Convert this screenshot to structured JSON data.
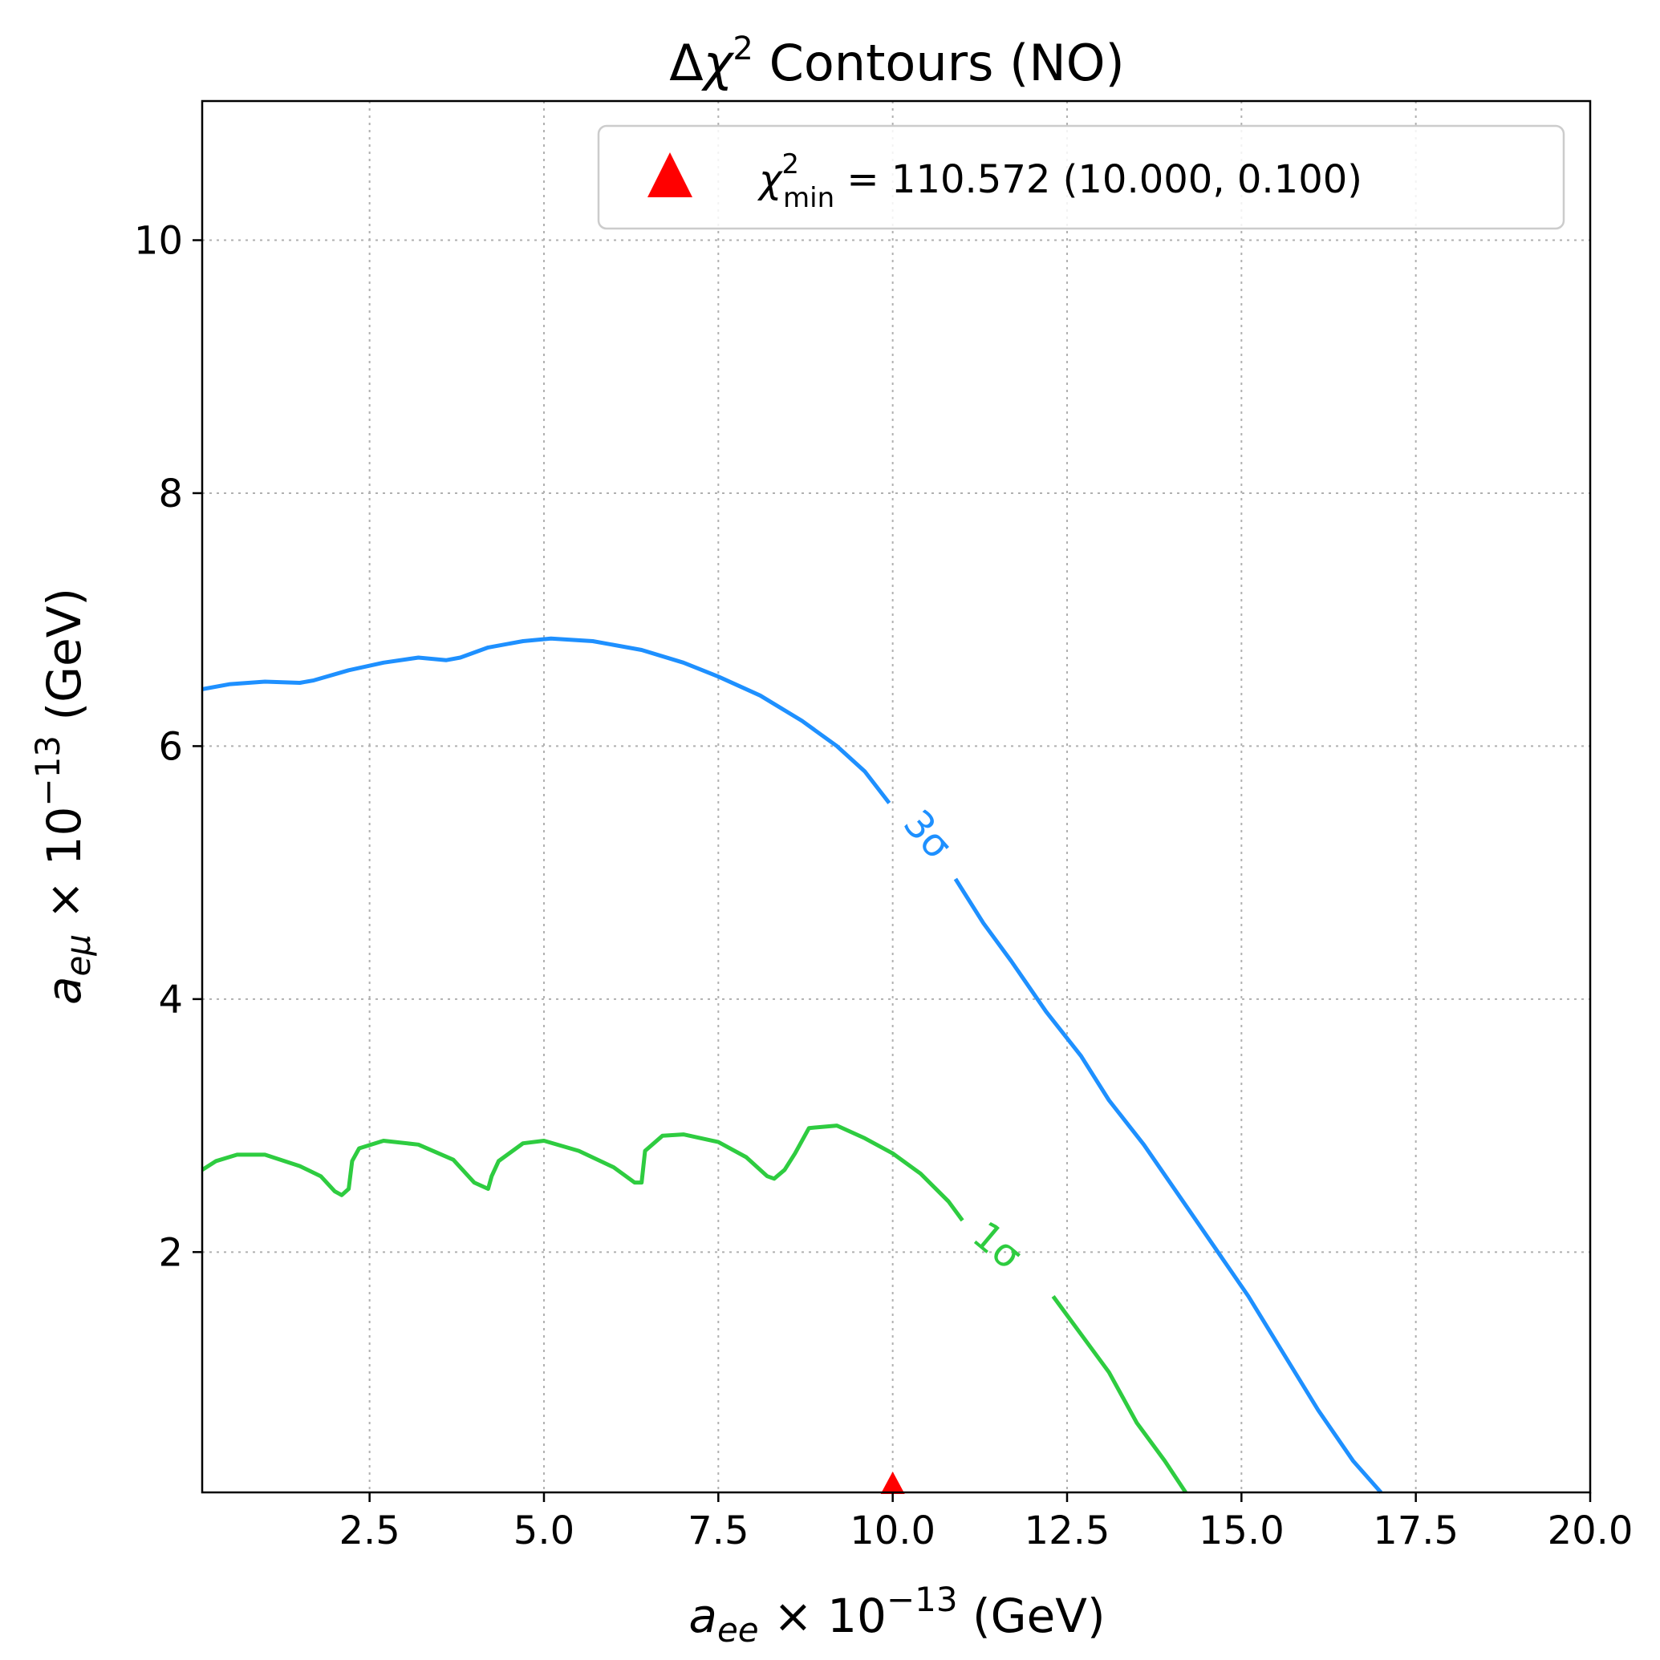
{
  "chart_data": {
    "type": "line",
    "title": {
      "delta": "Δ",
      "chi": "χ",
      "sup": "2",
      "rest": " Contours (NO)"
    },
    "xlabel": {
      "var": "a",
      "sub": "ee",
      "times": " × 10",
      "exp": "−13",
      "unit": " (GeV)"
    },
    "ylabel": {
      "var": "a",
      "sub": "eμ",
      "times": " × 10",
      "exp": "−13",
      "unit": " (GeV)"
    },
    "xlim": [
      0.1,
      20.0
    ],
    "ylim": [
      0.1,
      11.1
    ],
    "grid": true,
    "xticks": [
      2.5,
      5.0,
      7.5,
      10.0,
      12.5,
      15.0,
      17.5,
      20.0
    ],
    "xtick_labels": [
      "2.5",
      "5.0",
      "7.5",
      "10.0",
      "12.5",
      "15.0",
      "17.5",
      "20.0"
    ],
    "yticks": [
      2,
      4,
      6,
      8,
      10
    ],
    "ytick_labels": [
      "2",
      "4",
      "6",
      "8",
      "10"
    ],
    "colors": {
      "sigma1": "#2ecc40",
      "sigma3": "#1e90ff",
      "marker": "#ff0000"
    },
    "legend": {
      "position": "top-right",
      "chi": "χ",
      "sup": "2",
      "sub": "min",
      "text": " = 110.572 (10.000, 0.100)"
    },
    "marker": {
      "shape": "triangle",
      "x": 10.0,
      "y": 0.1
    },
    "series": [
      {
        "label": "3σ",
        "color": "#1e90ff",
        "label_at": [
          10.5,
          5.3
        ],
        "points": [
          [
            0.1,
            6.45
          ],
          [
            0.5,
            6.49
          ],
          [
            1.0,
            6.51
          ],
          [
            1.5,
            6.5
          ],
          [
            1.7,
            6.52
          ],
          [
            2.2,
            6.6
          ],
          [
            2.7,
            6.66
          ],
          [
            3.2,
            6.7
          ],
          [
            3.6,
            6.68
          ],
          [
            3.8,
            6.7
          ],
          [
            4.2,
            6.78
          ],
          [
            4.7,
            6.83
          ],
          [
            5.1,
            6.85
          ],
          [
            5.7,
            6.83
          ],
          [
            6.4,
            6.76
          ],
          [
            7.0,
            6.66
          ],
          [
            7.5,
            6.55
          ],
          [
            8.1,
            6.4
          ],
          [
            8.7,
            6.2
          ],
          [
            9.2,
            6.0
          ],
          [
            9.6,
            5.8
          ],
          [
            9.95,
            5.55
          ],
          [
            10.15,
            5.35
          ],
          [
            10.9,
            4.95
          ],
          [
            11.3,
            4.6
          ],
          [
            11.7,
            4.3
          ],
          [
            12.2,
            3.9
          ],
          [
            12.7,
            3.55
          ],
          [
            13.1,
            3.2
          ],
          [
            13.6,
            2.85
          ],
          [
            14.1,
            2.45
          ],
          [
            14.6,
            2.05
          ],
          [
            15.1,
            1.65
          ],
          [
            15.6,
            1.2
          ],
          [
            16.1,
            0.75
          ],
          [
            16.6,
            0.35
          ],
          [
            17.0,
            0.1
          ]
        ]
      },
      {
        "label": "1σ",
        "color": "#2ecc40",
        "label_at": [
          11.5,
          2.05
        ],
        "points": [
          [
            0.1,
            2.65
          ],
          [
            0.3,
            2.72
          ],
          [
            0.6,
            2.77
          ],
          [
            1.0,
            2.77
          ],
          [
            1.5,
            2.68
          ],
          [
            1.8,
            2.6
          ],
          [
            2.0,
            2.48
          ],
          [
            2.1,
            2.45
          ],
          [
            2.2,
            2.5
          ],
          [
            2.25,
            2.72
          ],
          [
            2.35,
            2.82
          ],
          [
            2.7,
            2.88
          ],
          [
            3.2,
            2.85
          ],
          [
            3.7,
            2.73
          ],
          [
            4.0,
            2.55
          ],
          [
            4.2,
            2.5
          ],
          [
            4.25,
            2.6
          ],
          [
            4.35,
            2.72
          ],
          [
            4.7,
            2.86
          ],
          [
            5.0,
            2.88
          ],
          [
            5.5,
            2.8
          ],
          [
            6.0,
            2.67
          ],
          [
            6.3,
            2.55
          ],
          [
            6.4,
            2.55
          ],
          [
            6.45,
            2.8
          ],
          [
            6.7,
            2.92
          ],
          [
            7.0,
            2.93
          ],
          [
            7.5,
            2.87
          ],
          [
            7.9,
            2.75
          ],
          [
            8.2,
            2.6
          ],
          [
            8.3,
            2.58
          ],
          [
            8.45,
            2.65
          ],
          [
            8.6,
            2.78
          ],
          [
            8.8,
            2.98
          ],
          [
            9.2,
            3.0
          ],
          [
            9.6,
            2.9
          ],
          [
            10.0,
            2.78
          ],
          [
            10.4,
            2.62
          ],
          [
            10.8,
            2.4
          ],
          [
            11.0,
            2.25
          ],
          [
            11.95,
            1.9
          ],
          [
            12.3,
            1.65
          ],
          [
            12.7,
            1.35
          ],
          [
            13.1,
            1.05
          ],
          [
            13.5,
            0.65
          ],
          [
            13.9,
            0.35
          ],
          [
            14.2,
            0.1
          ]
        ]
      }
    ]
  }
}
